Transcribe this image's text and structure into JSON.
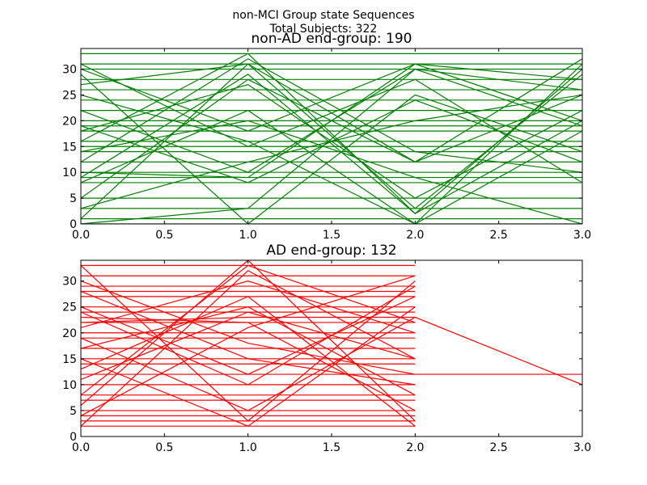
{
  "suptitle": [
    "non-MCI Group state Sequences",
    "Total Subjects: 322"
  ],
  "chart_data": [
    {
      "type": "line",
      "title": "non-AD end-group: 190",
      "color": "#008000",
      "x": [
        0,
        1,
        2,
        3
      ],
      "xlim": [
        0,
        3
      ],
      "ylim": [
        0,
        34
      ],
      "xticks": [
        {
          "value": 0,
          "label": "0.0"
        },
        0.5,
        {
          "value": 1,
          "label": "1.0"
        },
        1.5,
        {
          "value": 2,
          "label": "2.0"
        },
        2.5,
        {
          "value": 3,
          "label": "3.0"
        }
      ],
      "yticks": [
        0,
        5,
        10,
        15,
        20,
        25,
        30
      ],
      "series": [
        {
          "values": [
            0,
            0,
            0,
            0
          ]
        },
        {
          "values": [
            1,
            1,
            1,
            1
          ]
        },
        {
          "values": [
            3,
            3,
            3,
            3
          ]
        },
        {
          "values": [
            5,
            5,
            5,
            5
          ]
        },
        {
          "values": [
            8,
            8,
            8,
            8
          ]
        },
        {
          "values": [
            9,
            9,
            9,
            9
          ]
        },
        {
          "values": [
            10,
            10,
            10,
            10
          ]
        },
        {
          "values": [
            12,
            12,
            12,
            12
          ]
        },
        {
          "values": [
            14,
            14,
            14,
            14
          ]
        },
        {
          "values": [
            15,
            15,
            15,
            15
          ]
        },
        {
          "values": [
            16,
            16,
            16,
            16
          ]
        },
        {
          "values": [
            18,
            18,
            18,
            18
          ]
        },
        {
          "values": [
            19,
            19,
            19,
            19
          ]
        },
        {
          "values": [
            20,
            20,
            20,
            20
          ]
        },
        {
          "values": [
            22,
            22,
            22,
            22
          ]
        },
        {
          "values": [
            24,
            24,
            24,
            24
          ]
        },
        {
          "values": [
            26,
            26,
            26,
            26
          ]
        },
        {
          "values": [
            28,
            28,
            28,
            28
          ]
        },
        {
          "values": [
            30,
            30,
            30,
            30
          ]
        },
        {
          "values": [
            31,
            31,
            31,
            31
          ]
        },
        {
          "values": [
            33,
            33,
            33,
            33
          ]
        },
        {
          "values": [
            30,
            18,
            31,
            20
          ]
        },
        {
          "values": [
            27,
            31,
            12,
            25
          ]
        },
        {
          "values": [
            9,
            29,
            2,
            30
          ]
        },
        {
          "values": [
            0,
            3,
            30,
            19
          ]
        },
        {
          "values": [
            1,
            31,
            3,
            29
          ]
        },
        {
          "values": [
            19,
            8,
            24,
            12
          ]
        },
        {
          "values": [
            25,
            16,
            0,
            18
          ]
        },
        {
          "values": [
            12,
            32,
            14,
            10
          ]
        },
        {
          "values": [
            8,
            22,
            0,
            31
          ]
        },
        {
          "values": [
            31,
            15,
            28,
            8
          ]
        },
        {
          "values": [
            16,
            33,
            2,
            20
          ]
        },
        {
          "values": [
            22,
            10,
            30,
            26
          ]
        },
        {
          "values": [
            5,
            28,
            12,
            32
          ]
        },
        {
          "values": [
            29,
            0,
            25,
            14
          ]
        },
        {
          "values": [
            14,
            20,
            9,
            0
          ]
        },
        {
          "values": [
            3,
            12,
            20,
            25
          ]
        },
        {
          "values": [
            18,
            27,
            5,
            22
          ]
        },
        {
          "values": [
            10,
            9,
            31,
            28
          ]
        }
      ]
    },
    {
      "type": "line",
      "title": "AD end-group: 132",
      "color": "#ff0000",
      "x": [
        0,
        1,
        2,
        3
      ],
      "xlim": [
        0,
        3
      ],
      "ylim": [
        0,
        34
      ],
      "xticks": [
        {
          "value": 0,
          "label": "0.0"
        },
        0.5,
        {
          "value": 1,
          "label": "1.0"
        },
        1.5,
        {
          "value": 2,
          "label": "2.0"
        },
        2.5,
        {
          "value": 3,
          "label": "3.0"
        }
      ],
      "yticks": [
        0,
        5,
        10,
        15,
        20,
        25,
        30
      ],
      "series": [
        {
          "values": [
            2,
            2,
            2,
            null
          ]
        },
        {
          "values": [
            3,
            3,
            3,
            null
          ]
        },
        {
          "values": [
            4,
            4,
            4,
            null
          ]
        },
        {
          "values": [
            5,
            5,
            5,
            null
          ]
        },
        {
          "values": [
            7,
            7,
            7,
            null
          ]
        },
        {
          "values": [
            8,
            8,
            8,
            null
          ]
        },
        {
          "values": [
            10,
            10,
            10,
            null
          ]
        },
        {
          "values": [
            14,
            14,
            14,
            null
          ]
        },
        {
          "values": [
            15,
            15,
            15,
            null
          ]
        },
        {
          "values": [
            17,
            17,
            17,
            null
          ]
        },
        {
          "values": [
            19,
            19,
            19,
            null
          ]
        },
        {
          "values": [
            20,
            20,
            20,
            null
          ]
        },
        {
          "values": [
            22,
            22,
            22,
            null
          ]
        },
        {
          "values": [
            24,
            24,
            24,
            null
          ]
        },
        {
          "values": [
            25,
            25,
            25,
            null
          ]
        },
        {
          "values": [
            27,
            27,
            27,
            null
          ]
        },
        {
          "values": [
            28,
            28,
            28,
            null
          ]
        },
        {
          "values": [
            29,
            29,
            29,
            null
          ]
        },
        {
          "values": [
            31,
            31,
            31,
            null
          ]
        },
        {
          "values": [
            33,
            33,
            33,
            null
          ]
        },
        {
          "values": [
            33,
            3,
            30,
            null
          ]
        },
        {
          "values": [
            2,
            32,
            15,
            null
          ]
        },
        {
          "values": [
            23,
            22,
            5,
            null
          ]
        },
        {
          "values": [
            15,
            2,
            25,
            null
          ]
        },
        {
          "values": [
            8,
            33,
            22,
            null
          ]
        },
        {
          "values": [
            24,
            10,
            29,
            null
          ]
        },
        {
          "values": [
            13,
            27,
            2,
            null
          ]
        },
        {
          "values": [
            30,
            18,
            12,
            null
          ]
        },
        {
          "values": [
            4,
            21,
            31,
            null
          ]
        },
        {
          "values": [
            19,
            5,
            23,
            null
          ]
        },
        {
          "values": [
            28,
            15,
            10,
            null
          ]
        },
        {
          "values": [
            6,
            34,
            3,
            null
          ]
        },
        {
          "values": [
            21,
            30,
            20,
            null
          ]
        },
        {
          "values": [
            11,
            24,
            15,
            null
          ]
        },
        {
          "values": [
            25,
            12,
            27,
            null
          ]
        },
        {
          "values": [
            17,
            25,
            8,
            null
          ]
        },
        {
          "values": [
            22,
            23,
            23,
            10
          ]
        },
        {
          "values": [
            12,
            12,
            12,
            12
          ]
        }
      ]
    }
  ]
}
